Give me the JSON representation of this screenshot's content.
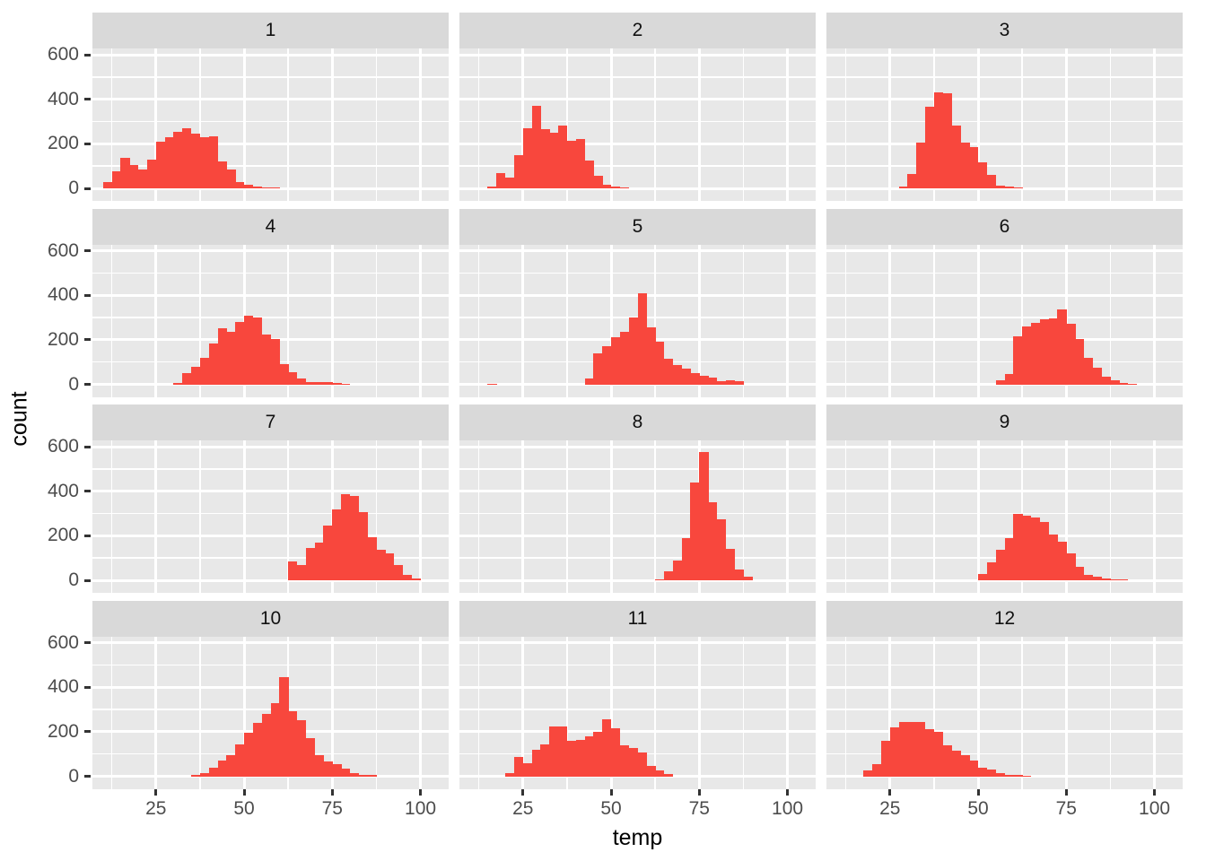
{
  "chart_data": {
    "type": "bar",
    "subtype": "faceted-histogram",
    "title": "",
    "xlabel": "temp",
    "ylabel": "count",
    "x_ticks": [
      25,
      50,
      75,
      100
    ],
    "y_ticks": [
      600,
      400,
      200,
      0
    ],
    "x_minor_gridlines": [
      12.5,
      37.5,
      62.5,
      87.5
    ],
    "y_minor_gridlines": [
      100,
      300,
      500
    ],
    "xlim": [
      7,
      108
    ],
    "ylim": [
      0,
      630
    ],
    "binwidth": 2.5,
    "legend": "none",
    "bar_color": "#F8473D",
    "panel_bg": "#E8E8E8",
    "strip_bg": "#D9D9D9",
    "grid_color": "#FFFFFF",
    "axis_text_color": "#4D4D4D",
    "facets": [
      {
        "label": "1",
        "bin_start": 10,
        "counts": [
          30,
          75,
          135,
          105,
          85,
          130,
          210,
          230,
          255,
          270,
          245,
          230,
          235,
          120,
          85,
          30,
          18,
          10,
          5,
          3
        ]
      },
      {
        "label": "2",
        "bin_start": 15,
        "counts": [
          8,
          70,
          50,
          150,
          270,
          370,
          265,
          250,
          280,
          215,
          220,
          125,
          55,
          15,
          8,
          5
        ]
      },
      {
        "label": "3",
        "bin_start": 27.5,
        "counts": [
          8,
          65,
          205,
          365,
          430,
          425,
          280,
          205,
          185,
          115,
          60,
          12,
          8,
          3
        ]
      },
      {
        "label": "4",
        "bin_start": 30,
        "counts": [
          8,
          50,
          80,
          120,
          185,
          250,
          235,
          280,
          310,
          300,
          225,
          205,
          90,
          55,
          28,
          10,
          12,
          12,
          8,
          4
        ]
      },
      {
        "label": "5",
        "bin_start": 15,
        "counts": [
          3,
          0,
          0,
          0,
          0,
          0,
          0,
          0,
          0,
          0,
          0,
          25,
          140,
          170,
          210,
          235,
          300,
          410,
          255,
          190,
          115,
          85,
          70,
          50,
          40,
          30,
          15,
          20,
          15
        ]
      },
      {
        "label": "6",
        "bin_start": 55,
        "counts": [
          20,
          45,
          215,
          260,
          275,
          290,
          295,
          335,
          270,
          205,
          120,
          75,
          35,
          20,
          5,
          3
        ]
      },
      {
        "label": "7",
        "bin_start": 62.5,
        "counts": [
          85,
          70,
          145,
          170,
          245,
          320,
          385,
          380,
          305,
          195,
          135,
          120,
          70,
          25,
          8
        ]
      },
      {
        "label": "8",
        "bin_start": 62.5,
        "counts": [
          5,
          40,
          90,
          190,
          440,
          575,
          350,
          275,
          140,
          50,
          18
        ]
      },
      {
        "label": "9",
        "bin_start": 50,
        "counts": [
          30,
          80,
          135,
          190,
          300,
          290,
          280,
          260,
          205,
          175,
          120,
          60,
          25,
          15,
          10,
          5,
          3
        ]
      },
      {
        "label": "10",
        "bin_start": 35,
        "counts": [
          8,
          15,
          40,
          70,
          95,
          145,
          195,
          240,
          280,
          330,
          445,
          290,
          250,
          170,
          95,
          65,
          55,
          35,
          15,
          8,
          5
        ]
      },
      {
        "label": "11",
        "bin_start": 20,
        "counts": [
          15,
          85,
          60,
          120,
          145,
          225,
          222,
          160,
          165,
          178,
          200,
          255,
          215,
          140,
          125,
          105,
          45,
          25,
          10
        ]
      },
      {
        "label": "12",
        "bin_start": 17.5,
        "counts": [
          25,
          55,
          160,
          220,
          245,
          245,
          245,
          210,
          200,
          140,
          115,
          95,
          70,
          40,
          30,
          15,
          8,
          5,
          3
        ]
      }
    ]
  }
}
